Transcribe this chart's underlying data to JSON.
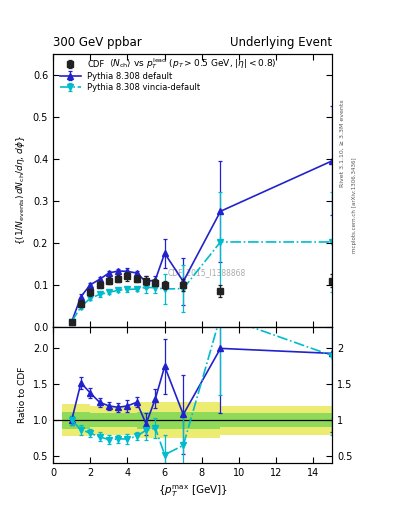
{
  "title_left": "300 GeV ppbar",
  "title_right": "Underlying Event",
  "subtitle": "<N_{ch}> vs p_{T}^{lead} (p_{T} > 0.5 GeV, |#eta| < 0.8)",
  "ylabel_main": "((1/N_{events}) dN_{ch}/d#eta, d#phi)",
  "ylabel_ratio": "Ratio to CDF",
  "xlabel": "{p_{T}^{max} [GeV]}",
  "rivet_label": "Rivet 3.1.10, ≥ 3.3M events",
  "mcplots_label": "mcplots.cern.ch [arXiv:1306.3436]",
  "cdf_watermark": "CDF_2015_I1388868",
  "cdf_x": [
    1.0,
    1.5,
    2.0,
    2.5,
    3.0,
    3.5,
    4.0,
    4.5,
    5.0,
    5.5,
    6.0,
    7.0,
    9.0,
    15.0
  ],
  "cdf_y": [
    0.012,
    0.055,
    0.082,
    0.1,
    0.11,
    0.115,
    0.12,
    0.115,
    0.11,
    0.105,
    0.1,
    0.1,
    0.085,
    0.11
  ],
  "cdf_yerr": [
    0.004,
    0.008,
    0.008,
    0.008,
    0.008,
    0.008,
    0.01,
    0.008,
    0.01,
    0.008,
    0.01,
    0.015,
    0.015,
    0.015
  ],
  "pd_x": [
    1.0,
    1.5,
    2.0,
    2.5,
    3.0,
    3.5,
    4.0,
    4.5,
    5.0,
    5.5,
    6.0,
    7.0,
    9.0,
    15.0
  ],
  "pd_y": [
    0.012,
    0.072,
    0.1,
    0.113,
    0.128,
    0.133,
    0.132,
    0.128,
    0.107,
    0.112,
    0.175,
    0.108,
    0.275,
    0.395
  ],
  "pd_yerr": [
    0.003,
    0.005,
    0.005,
    0.005,
    0.005,
    0.005,
    0.007,
    0.005,
    0.015,
    0.01,
    0.035,
    0.055,
    0.12,
    0.13
  ],
  "pv_x": [
    1.0,
    1.5,
    2.0,
    2.5,
    3.0,
    3.5,
    4.0,
    4.5,
    5.0,
    5.5,
    6.0,
    7.0,
    9.0,
    15.0
  ],
  "pv_y": [
    0.012,
    0.048,
    0.068,
    0.077,
    0.082,
    0.087,
    0.089,
    0.09,
    0.094,
    0.093,
    0.09,
    0.091,
    0.202,
    0.202
  ],
  "pv_yerr": [
    0.003,
    0.005,
    0.005,
    0.005,
    0.005,
    0.005,
    0.006,
    0.005,
    0.013,
    0.013,
    0.035,
    0.055,
    0.12,
    0.12
  ],
  "rd_y": [
    1.0,
    1.52,
    1.38,
    1.25,
    1.2,
    1.18,
    1.2,
    1.25,
    0.95,
    1.3,
    1.75,
    1.08,
    2.0,
    1.93
  ],
  "rd_yerr": [
    0.06,
    0.08,
    0.07,
    0.06,
    0.06,
    0.06,
    0.08,
    0.07,
    0.15,
    0.13,
    0.38,
    0.55,
    0.9,
    1.1
  ],
  "rv_y": [
    1.0,
    0.87,
    0.82,
    0.77,
    0.73,
    0.74,
    0.74,
    0.78,
    0.86,
    0.89,
    0.52,
    0.65,
    2.45,
    1.9
  ],
  "rv_yerr": [
    0.06,
    0.07,
    0.06,
    0.06,
    0.06,
    0.06,
    0.07,
    0.06,
    0.13,
    0.14,
    0.28,
    0.45,
    1.1,
    1.1
  ],
  "band_edges": [
    0.5,
    2.0,
    3.0,
    4.5,
    6.0,
    7.5,
    9.0,
    15.0
  ],
  "band_green_lo": [
    0.88,
    0.9,
    0.9,
    0.88,
    0.88,
    0.88,
    0.9,
    0.9
  ],
  "band_green_hi": [
    1.12,
    1.1,
    1.1,
    1.12,
    1.12,
    1.12,
    1.1,
    1.1
  ],
  "band_yellow_lo": [
    0.78,
    0.8,
    0.8,
    0.75,
    0.75,
    0.75,
    0.8,
    0.8
  ],
  "band_yellow_hi": [
    1.22,
    1.2,
    1.2,
    1.25,
    1.25,
    1.25,
    1.2,
    1.2
  ],
  "xlim": [
    0,
    15
  ],
  "ylim_main": [
    0.0,
    0.65
  ],
  "ylim_ratio": [
    0.4,
    2.3
  ],
  "yticks_main": [
    0.0,
    0.1,
    0.2,
    0.3,
    0.4,
    0.5,
    0.6
  ],
  "yticks_ratio": [
    0.5,
    1.0,
    1.5,
    2.0
  ],
  "xticks": [
    0,
    2,
    4,
    6,
    8,
    10,
    12,
    14
  ],
  "color_cdf": "#222222",
  "color_pd": "#2222cc",
  "color_pv": "#00bbcc",
  "color_green": "#44cc44",
  "color_yellow": "#dddd00",
  "marker_size": 4.5,
  "lw": 1.2
}
